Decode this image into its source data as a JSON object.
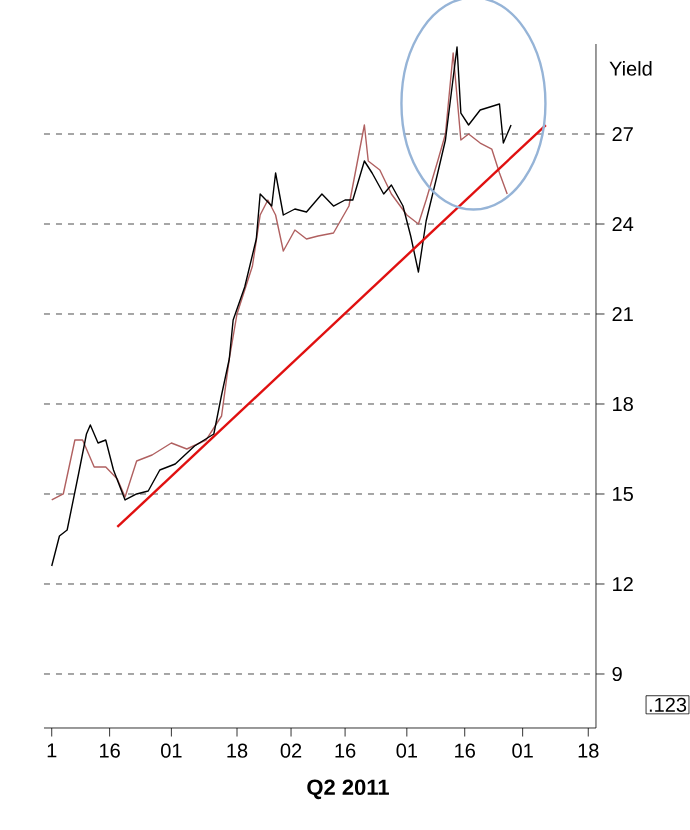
{
  "chart_data": {
    "type": "line",
    "ylabel": "Yield",
    "xlabel": "Q2 2011",
    "annotations": [
      ".123"
    ],
    "xlim": [
      "2011-02-27",
      "2011-07-20"
    ],
    "ylim": [
      7.2,
      30
    ],
    "xticks": [
      {
        "value": "2011-03-01",
        "label": "1"
      },
      {
        "value": "2011-03-16",
        "label": "16"
      },
      {
        "value": "2011-04-01",
        "label": "01"
      },
      {
        "value": "2011-04-18",
        "label": "18"
      },
      {
        "value": "2011-05-02",
        "label": "02"
      },
      {
        "value": "2011-05-16",
        "label": "16"
      },
      {
        "value": "2011-06-01",
        "label": "01"
      },
      {
        "value": "2011-06-16",
        "label": "16"
      },
      {
        "value": "2011-07-01",
        "label": "01"
      },
      {
        "value": "2011-07-18",
        "label": "18"
      }
    ],
    "yticks": [
      9,
      12,
      15,
      18,
      21,
      24,
      27
    ],
    "grid": "y",
    "marker": "none",
    "line_style": "solid",
    "series": [
      {
        "color": "#b06060",
        "x": [
          "2011-03-01",
          "2011-03-04",
          "2011-03-07",
          "2011-03-09",
          "2011-03-12",
          "2011-03-15",
          "2011-03-18",
          "2011-03-20",
          "2011-03-23",
          "2011-03-27",
          "2011-04-01",
          "2011-04-05",
          "2011-04-10",
          "2011-04-14",
          "2011-04-16",
          "2011-04-18",
          "2011-04-22",
          "2011-04-24",
          "2011-04-26",
          "2011-04-28",
          "2011-04-30",
          "2011-05-03",
          "2011-05-06",
          "2011-05-09",
          "2011-05-13",
          "2011-05-17",
          "2011-05-21",
          "2011-05-22",
          "2011-05-25",
          "2011-05-28",
          "2011-06-01",
          "2011-06-04",
          "2011-06-06",
          "2011-06-09",
          "2011-06-11",
          "2011-06-13",
          "2011-06-15",
          "2011-06-17",
          "2011-06-20",
          "2011-06-23",
          "2011-06-25",
          "2011-06-27"
        ],
        "values": [
          14.8,
          15.0,
          16.8,
          16.8,
          15.9,
          15.9,
          15.5,
          14.9,
          16.1,
          16.3,
          16.7,
          16.5,
          16.8,
          17.6,
          19.5,
          21.0,
          22.6,
          24.3,
          24.8,
          24.3,
          23.1,
          23.8,
          23.5,
          23.6,
          23.7,
          24.6,
          27.3,
          26.1,
          25.8,
          25.0,
          24.3,
          24.0,
          24.8,
          26.1,
          27.0,
          29.7,
          26.8,
          27.0,
          26.7,
          26.5,
          25.7,
          25.0
        ]
      },
      {
        "color": "#000000",
        "x": [
          "2011-03-01",
          "2011-03-03",
          "2011-03-05",
          "2011-03-08",
          "2011-03-10",
          "2011-03-11",
          "2011-03-13",
          "2011-03-15",
          "2011-03-17",
          "2011-03-20",
          "2011-03-23",
          "2011-03-26",
          "2011-03-29",
          "2011-04-02",
          "2011-04-07",
          "2011-04-12",
          "2011-04-14",
          "2011-04-16",
          "2011-04-17",
          "2011-04-20",
          "2011-04-23",
          "2011-04-24",
          "2011-04-27",
          "2011-04-28",
          "2011-04-30",
          "2011-05-03",
          "2011-05-06",
          "2011-05-10",
          "2011-05-13",
          "2011-05-16",
          "2011-05-18",
          "2011-05-21",
          "2011-05-23",
          "2011-05-26",
          "2011-05-28",
          "2011-05-31",
          "2011-06-02",
          "2011-06-04",
          "2011-06-06",
          "2011-06-09",
          "2011-06-11",
          "2011-06-14",
          "2011-06-15",
          "2011-06-17",
          "2011-06-20",
          "2011-06-25",
          "2011-06-26",
          "2011-06-28"
        ],
        "values": [
          12.6,
          13.6,
          13.8,
          15.7,
          17.0,
          17.3,
          16.7,
          16.8,
          15.8,
          14.8,
          15.0,
          15.1,
          15.8,
          16.0,
          16.6,
          17.0,
          18.3,
          19.5,
          20.8,
          21.9,
          23.5,
          25.0,
          24.6,
          25.7,
          24.3,
          24.5,
          24.4,
          25.0,
          24.6,
          24.8,
          24.8,
          26.1,
          25.7,
          25.0,
          25.3,
          24.6,
          23.6,
          22.4,
          24.1,
          25.7,
          26.8,
          29.9,
          27.7,
          27.3,
          27.8,
          28.0,
          26.7,
          27.3
        ]
      },
      {
        "color": "#e01010",
        "x": [
          "2011-03-18",
          "2011-07-07"
        ],
        "values": [
          13.9,
          27.3
        ]
      }
    ]
  }
}
